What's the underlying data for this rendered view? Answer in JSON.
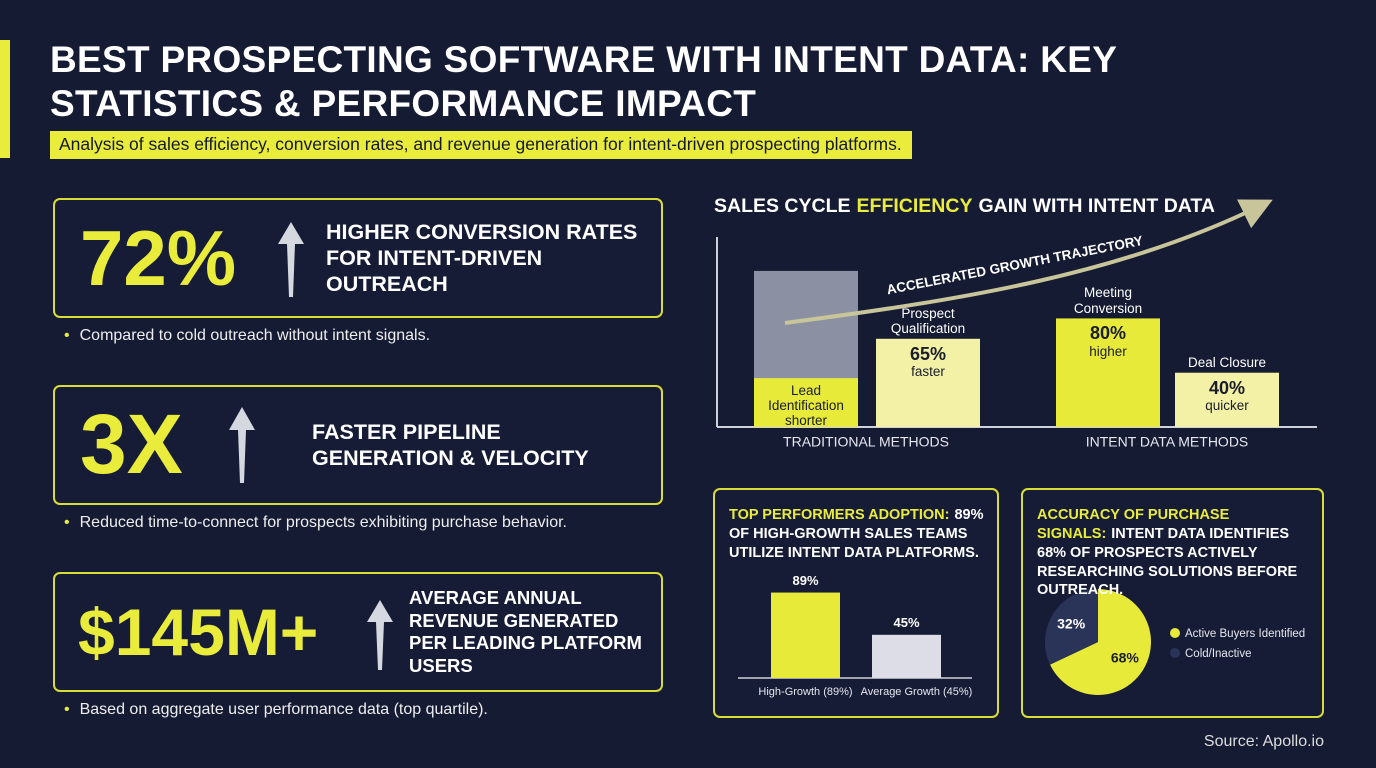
{
  "header": {
    "title": "BEST PROSPECTING SOFTWARE WITH INTENT DATA: KEY STATISTICS & PERFORMANCE IMPACT",
    "subtitle": "Analysis of sales efficiency, conversion rates, and revenue generation for intent-driven prospecting platforms."
  },
  "stats": [
    {
      "figure": "72%",
      "headline": "HIGHER CONVERSION RATES FOR INTENT-DRIVEN OUTREACH",
      "note": "Compared to cold outreach without intent signals."
    },
    {
      "figure": "3X",
      "headline": "FASTER PIPELINE GENERATION & VELOCITY",
      "note": "Reduced time-to-connect for prospects exhibiting purchase behavior."
    },
    {
      "figure": "$145M+",
      "headline": "AVERAGE ANNUAL REVENUE GENERATED PER LEADING PLATFORM USERS",
      "note": "Based on aggregate user performance data (top quartile)."
    }
  ],
  "chart_data": [
    {
      "type": "bar",
      "title_parts": [
        "SALES CYCLE",
        "EFFICIENCY",
        "GAIN WITH INTENT DATA"
      ],
      "categories": [
        "Lead Identification",
        "Prospect Qualification",
        "Meeting Conversion",
        "Deal Closure"
      ],
      "values": [
        36,
        65,
        80,
        40
      ],
      "value_labels": [
        null,
        "65%",
        "80%",
        "40%"
      ],
      "descriptors": [
        "shorter",
        "faster",
        "higher",
        "quicker"
      ],
      "colors": [
        "#e8ea3a",
        "#f3f1a6",
        "#e8ea3a",
        "#f3f1a6"
      ],
      "background_value": 115,
      "background_color": "#8c90a3",
      "groups": [
        "TRADITIONAL METHODS",
        "INTENT DATA METHODS"
      ],
      "annotation": "ACCELERATED GROWTH TRAJECTORY",
      "ylim": [
        0,
        140
      ]
    },
    {
      "type": "bar",
      "title_lead": "TOP PERFORMERS ADOPTION:",
      "title_rest": "89% OF HIGH-GROWTH SALES TEAMS UTILIZE INTENT DATA PLATFORMS.",
      "categories": [
        "High-Growth (89%)",
        "Average Growth (45%)"
      ],
      "values": [
        89,
        45
      ],
      "value_labels": [
        "89%",
        "45%"
      ],
      "colors": [
        "#e8ea3a",
        "#dcdde6"
      ],
      "ylim": [
        0,
        100
      ]
    },
    {
      "type": "pie",
      "title_lead": "ACCURACY OF PURCHASE SIGNALS:",
      "title_rest": "INTENT DATA IDENTIFIES 68% OF PROSPECTS ACTIVELY RESEARCHING SOLUTIONS BEFORE OUTREACH.",
      "categories": [
        "Active Buyers Identified",
        "Cold/Inactive"
      ],
      "values": [
        68,
        32
      ],
      "value_labels": [
        "68%",
        "32%"
      ],
      "colors": [
        "#e8ea3a",
        "#2a3358"
      ]
    }
  ],
  "source": "Source: Apollo.io"
}
